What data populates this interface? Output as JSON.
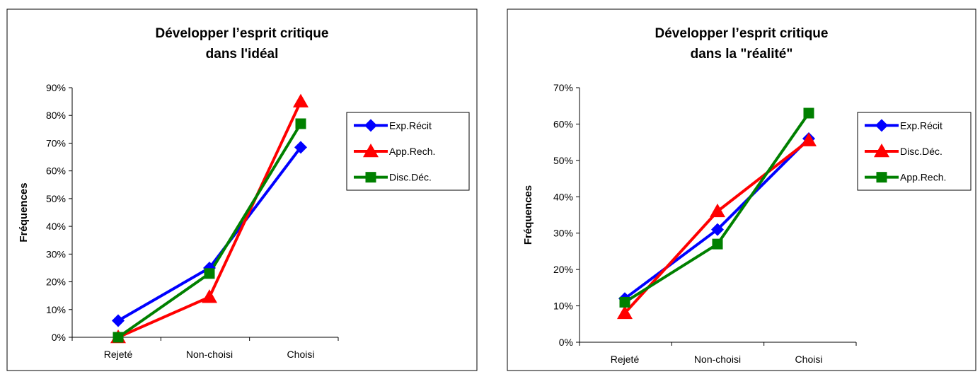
{
  "chart_data": [
    {
      "type": "line",
      "title": [
        "Développer l’esprit critique",
        "dans l'idéal"
      ],
      "xlabel": "",
      "ylabel": "Fréquences",
      "categories": [
        "Rejeté",
        "Non-choisi",
        "Choisi"
      ],
      "ylim": [
        0,
        0.9
      ],
      "yticks": [
        "0%",
        "10%",
        "20%",
        "30%",
        "40%",
        "50%",
        "60%",
        "70%",
        "80%",
        "90%"
      ],
      "grid": false,
      "legend_position": "right",
      "series": [
        {
          "name": "Exp.Récit",
          "color": "#0000ff",
          "marker": "diamond",
          "values": [
            0.06,
            0.25,
            0.685
          ]
        },
        {
          "name": "App.Rech.",
          "color": "#ff0000",
          "marker": "triangle",
          "values": [
            0.0,
            0.145,
            0.85
          ]
        },
        {
          "name": "Disc.Déc.",
          "color": "#008000",
          "marker": "square",
          "values": [
            0.0,
            0.23,
            0.77
          ]
        }
      ]
    },
    {
      "type": "line",
      "title": [
        "Développer l’esprit critique",
        "dans la \"réalité\""
      ],
      "xlabel": "",
      "ylabel": "Fréquences",
      "categories": [
        "Rejeté",
        "Non-choisi",
        "Choisi"
      ],
      "ylim": [
        0,
        0.7
      ],
      "yticks": [
        "0%",
        "10%",
        "20%",
        "30%",
        "40%",
        "50%",
        "60%",
        "70%"
      ],
      "grid": false,
      "legend_position": "right",
      "series": [
        {
          "name": "Exp.Récit",
          "color": "#0000ff",
          "marker": "diamond",
          "values": [
            0.12,
            0.31,
            0.56
          ]
        },
        {
          "name": "Disc.Déc.",
          "color": "#ff0000",
          "marker": "triangle",
          "values": [
            0.08,
            0.36,
            0.555
          ]
        },
        {
          "name": "App.Rech.",
          "color": "#008000",
          "marker": "square",
          "values": [
            0.11,
            0.27,
            0.63
          ]
        }
      ]
    }
  ]
}
